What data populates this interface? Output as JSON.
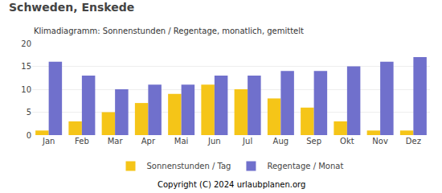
{
  "chart_data": {
    "type": "bar",
    "title": "Schweden, Enskede",
    "subtitle": "Klimadiagramm: Sonnenstunden / Regentage, monatlich, gemittelt",
    "categories": [
      "Jan",
      "Feb",
      "Mar",
      "Apr",
      "Mai",
      "Jun",
      "Jul",
      "Aug",
      "Sep",
      "Okt",
      "Nov",
      "Dez"
    ],
    "series": [
      {
        "name": "Sonnenstunden / Tag",
        "color": "#F5C518",
        "values": [
          1,
          3,
          5,
          7,
          9,
          11,
          10,
          8,
          6,
          3,
          1,
          1
        ]
      },
      {
        "name": "Regentage / Monat",
        "color": "#7070CC",
        "values": [
          16,
          13,
          10,
          11,
          11,
          13,
          13,
          14,
          14,
          15,
          16,
          17
        ]
      }
    ],
    "ylim": [
      0,
      20
    ],
    "yticks": [
      0,
      5,
      10,
      15,
      20
    ],
    "grid": true,
    "legend": "bottom",
    "annotations": [
      "Copyright (C) 2024 urlaubplanen.org"
    ]
  }
}
